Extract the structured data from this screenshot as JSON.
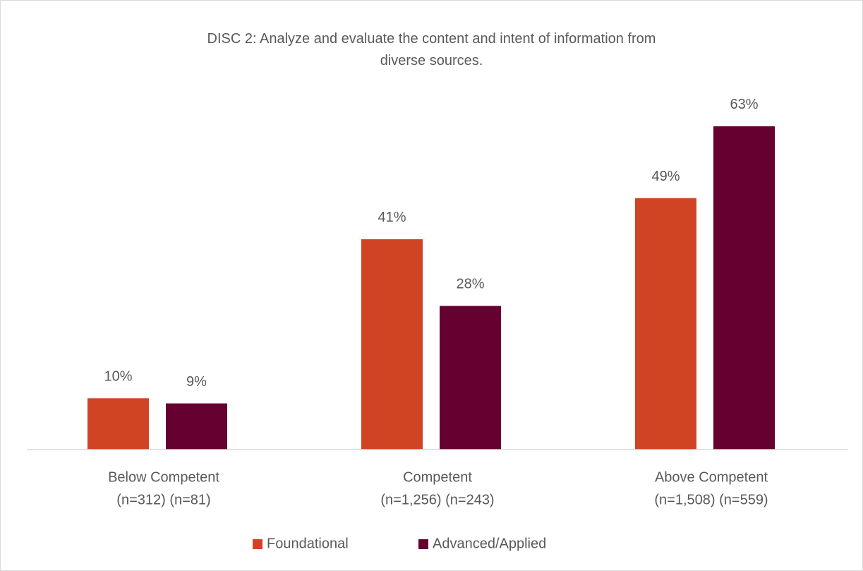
{
  "chart_data": {
    "type": "bar",
    "title": "DISC 2: Analyze and evaluate the content and intent of information from diverse sources.",
    "categories": [
      "Below Competent",
      "Competent",
      "Above Competent"
    ],
    "category_notes": [
      "(n=312) (n=81)",
      "(n=1,256) (n=243)",
      "(n=1,508) (n=559)"
    ],
    "series": [
      {
        "name": "Foundational",
        "color": "#d04423",
        "values": [
          10,
          41,
          49
        ],
        "value_labels": [
          "10%",
          "41%",
          "49%"
        ]
      },
      {
        "name": "Advanced/Applied",
        "color": "#650030",
        "values": [
          9,
          28,
          63
        ],
        "value_labels": [
          "9%",
          "28%",
          "63%"
        ]
      }
    ],
    "ylim": [
      0,
      70
    ],
    "legend": "bottom"
  }
}
